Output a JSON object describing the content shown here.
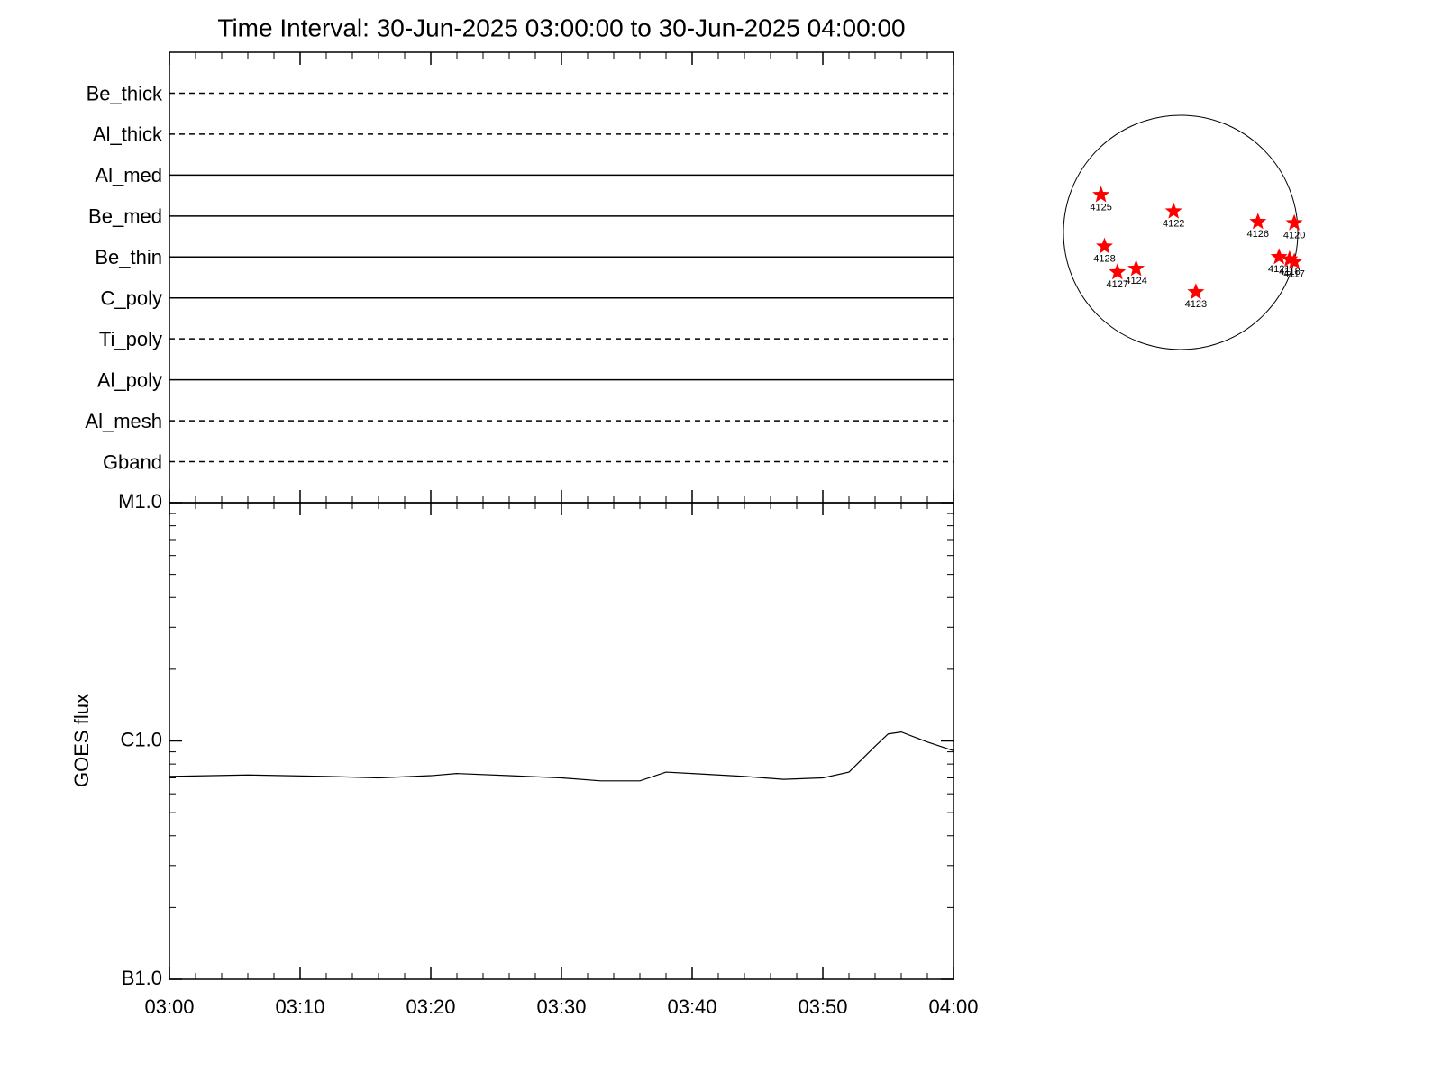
{
  "chart_data": [
    {
      "type": "filter-timeline",
      "title": "Time Interval: 30-Jun-2025 03:00:00 to 30-Jun-2025 04:00:00",
      "categories": [
        "Be_thick",
        "Al_thick",
        "Al_med",
        "Be_med",
        "Be_thin",
        "C_poly",
        "Ti_poly",
        "Al_poly",
        "Al_mesh",
        "Gband"
      ],
      "line_styles": [
        "dashed",
        "dashed",
        "solid",
        "solid",
        "solid",
        "solid",
        "dashed",
        "solid",
        "dashed",
        "dashed"
      ]
    },
    {
      "type": "line",
      "ylabel": "GOES flux",
      "x": [
        "03:00",
        "03:06",
        "03:12",
        "03:16",
        "03:20",
        "03:22",
        "03:26",
        "03:30",
        "03:33",
        "03:36",
        "03:38",
        "03:40",
        "03:44",
        "03:47",
        "03:50",
        "03:52",
        "03:54",
        "03:55",
        "03:56",
        "03:58",
        "04:00"
      ],
      "values": [
        7.1e-07,
        7.2e-07,
        7.1e-07,
        7e-07,
        7.15e-07,
        7.3e-07,
        7.15e-07,
        7e-07,
        6.8e-07,
        6.8e-07,
        7.4e-07,
        7.3e-07,
        7.1e-07,
        6.9e-07,
        7e-07,
        7.4e-07,
        9.5e-07,
        1.07e-06,
        1.09e-06,
        9.9e-07,
        9.1e-07
      ],
      "color": "#000000",
      "xlim": [
        "03:00",
        "04:00"
      ],
      "xticks": [
        "03:00",
        "03:10",
        "03:20",
        "03:30",
        "03:40",
        "03:50",
        "04:00"
      ],
      "ylim": [
        1e-07,
        1e-05
      ],
      "yticks": [
        {
          "value": 1e-07,
          "label": "B1.0"
        },
        {
          "value": 1e-06,
          "label": "C1.0"
        },
        {
          "value": 1e-05,
          "label": "M1.0"
        }
      ],
      "log_scale": true
    },
    {
      "type": "scatter",
      "x": [
        -0.68,
        -0.06,
        0.66,
        0.97,
        -0.65,
        -0.38,
        -0.54,
        0.13,
        0.84,
        0.93,
        0.97
      ],
      "values": [
        0.32,
        0.18,
        0.09,
        0.08,
        -0.12,
        -0.31,
        -0.34,
        -0.51,
        -0.21,
        -0.23,
        -0.25
      ],
      "labels": [
        "4125",
        "4122",
        "4126",
        "4120",
        "4128",
        "4124",
        "4127",
        "4123",
        "4121",
        "4118",
        "4117"
      ],
      "color": "#ff0000",
      "xlim": [
        -1,
        1
      ],
      "ylim": [
        -1,
        1
      ]
    }
  ]
}
